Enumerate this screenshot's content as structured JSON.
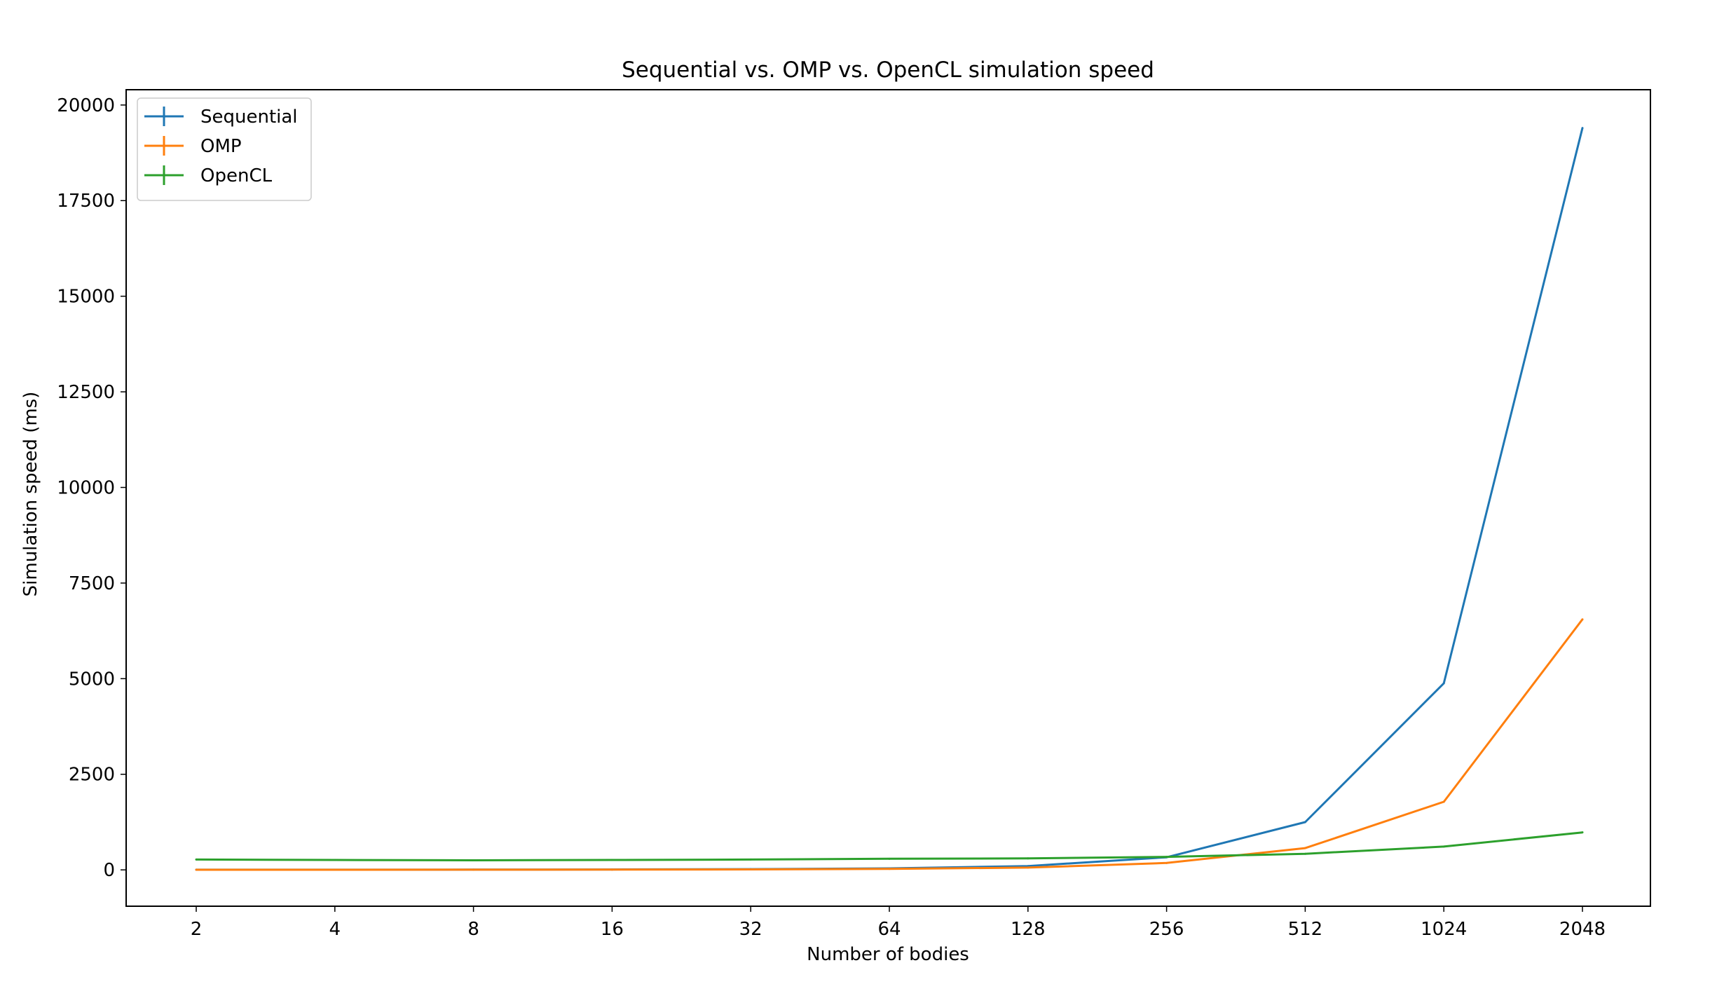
{
  "chart_data": {
    "type": "line",
    "title": "Sequential vs. OMP vs. OpenCL simulation speed",
    "xlabel": "Number of bodies",
    "ylabel": "Simulation speed (ms)",
    "categories": [
      "2",
      "4",
      "8",
      "16",
      "32",
      "64",
      "128",
      "256",
      "512",
      "1024",
      "2048"
    ],
    "ylim": [
      -950,
      20400
    ],
    "yticks": [
      0,
      2500,
      5000,
      7500,
      10000,
      12500,
      15000,
      17500,
      20000
    ],
    "grid": false,
    "legend_position": "upper-left",
    "series": [
      {
        "name": "Sequential",
        "color": "#1f77b4",
        "values": [
          5,
          4,
          6,
          10,
          20,
          40,
          100,
          330,
          1250,
          4880,
          19400
        ]
      },
      {
        "name": "OMP",
        "color": "#ff7f0e",
        "values": [
          3,
          3,
          4,
          6,
          12,
          25,
          60,
          180,
          570,
          1780,
          6550
        ]
      },
      {
        "name": "OpenCL",
        "color": "#2ca02c",
        "values": [
          270,
          260,
          250,
          260,
          270,
          290,
          300,
          340,
          420,
          610,
          980
        ]
      }
    ]
  }
}
